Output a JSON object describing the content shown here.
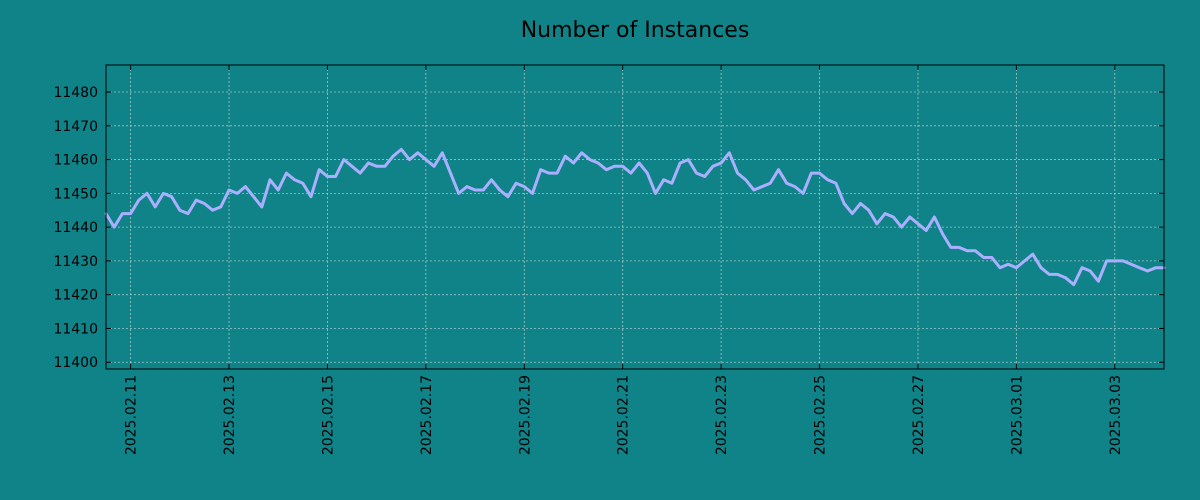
{
  "chart_data": {
    "type": "line",
    "title": "Number of Instances",
    "xlabel": "",
    "ylabel": "",
    "ylim": [
      11398,
      11488
    ],
    "xlim": [
      "2025-02-10T12:00",
      "2025-03-04T00:00"
    ],
    "grid": true,
    "yticks": [
      11400,
      11410,
      11420,
      11430,
      11440,
      11450,
      11460,
      11470,
      11480
    ],
    "xticks": [
      "2025.02.11",
      "2025.02.13",
      "2025.02.15",
      "2025.02.17",
      "2025.02.19",
      "2025.02.21",
      "2025.02.23",
      "2025.02.25",
      "2025.02.27",
      "2025.03.01",
      "2025.03.03"
    ],
    "series": [
      {
        "color": "#aab0ff",
        "x": [
          "2025-02-10T12:00",
          "2025-02-10T16:00",
          "2025-02-10T20:00",
          "2025-02-11T00:00",
          "2025-02-11T04:00",
          "2025-02-11T08:00",
          "2025-02-11T12:00",
          "2025-02-11T16:00",
          "2025-02-11T20:00",
          "2025-02-12T00:00",
          "2025-02-12T04:00",
          "2025-02-12T08:00",
          "2025-02-12T12:00",
          "2025-02-12T16:00",
          "2025-02-12T20:00",
          "2025-02-13T00:00",
          "2025-02-13T04:00",
          "2025-02-13T08:00",
          "2025-02-13T12:00",
          "2025-02-13T16:00",
          "2025-02-13T20:00",
          "2025-02-14T00:00",
          "2025-02-14T04:00",
          "2025-02-14T08:00",
          "2025-02-14T12:00",
          "2025-02-14T16:00",
          "2025-02-14T20:00",
          "2025-02-15T00:00",
          "2025-02-15T04:00",
          "2025-02-15T08:00",
          "2025-02-15T12:00",
          "2025-02-15T16:00",
          "2025-02-15T20:00",
          "2025-02-16T00:00",
          "2025-02-16T04:00",
          "2025-02-16T08:00",
          "2025-02-16T12:00",
          "2025-02-16T16:00",
          "2025-02-16T20:00",
          "2025-02-17T00:00",
          "2025-02-17T04:00",
          "2025-02-17T08:00",
          "2025-02-17T12:00",
          "2025-02-17T16:00",
          "2025-02-17T20:00",
          "2025-02-18T00:00",
          "2025-02-18T04:00",
          "2025-02-18T08:00",
          "2025-02-18T12:00",
          "2025-02-18T16:00",
          "2025-02-18T20:00",
          "2025-02-19T00:00",
          "2025-02-19T04:00",
          "2025-02-19T08:00",
          "2025-02-19T12:00",
          "2025-02-19T16:00",
          "2025-02-19T20:00",
          "2025-02-20T00:00",
          "2025-02-20T04:00",
          "2025-02-20T08:00",
          "2025-02-20T12:00",
          "2025-02-20T16:00",
          "2025-02-20T20:00",
          "2025-02-21T00:00",
          "2025-02-21T04:00",
          "2025-02-21T08:00",
          "2025-02-21T12:00",
          "2025-02-21T16:00",
          "2025-02-21T20:00",
          "2025-02-22T00:00",
          "2025-02-22T04:00",
          "2025-02-22T08:00",
          "2025-02-22T12:00",
          "2025-02-22T16:00",
          "2025-02-22T20:00",
          "2025-02-23T00:00",
          "2025-02-23T04:00",
          "2025-02-23T08:00",
          "2025-02-23T12:00",
          "2025-02-23T16:00",
          "2025-02-23T20:00",
          "2025-02-24T00:00",
          "2025-02-24T04:00",
          "2025-02-24T08:00",
          "2025-02-24T12:00",
          "2025-02-24T16:00",
          "2025-02-24T20:00",
          "2025-02-25T00:00",
          "2025-02-25T04:00",
          "2025-02-25T08:00",
          "2025-02-25T12:00",
          "2025-02-25T16:00",
          "2025-02-25T20:00",
          "2025-02-26T00:00",
          "2025-02-26T04:00",
          "2025-02-26T08:00",
          "2025-02-26T12:00",
          "2025-02-26T16:00",
          "2025-02-26T20:00",
          "2025-02-27T00:00",
          "2025-02-27T04:00",
          "2025-02-27T08:00",
          "2025-02-27T12:00",
          "2025-02-27T16:00",
          "2025-02-27T20:00",
          "2025-02-28T00:00",
          "2025-02-28T04:00",
          "2025-02-28T08:00",
          "2025-02-28T12:00",
          "2025-02-28T16:00",
          "2025-02-28T20:00",
          "2025-03-01T00:00",
          "2025-03-01T04:00",
          "2025-03-01T08:00",
          "2025-03-01T12:00",
          "2025-03-01T16:00",
          "2025-03-01T20:00",
          "2025-03-02T00:00",
          "2025-03-02T04:00",
          "2025-03-02T08:00",
          "2025-03-02T12:00",
          "2025-03-02T16:00",
          "2025-03-02T20:00",
          "2025-03-03T00:00",
          "2025-03-03T04:00",
          "2025-03-03T08:00",
          "2025-03-03T12:00",
          "2025-03-03T16:00",
          "2025-03-03T20:00",
          "2025-03-04T00:00"
        ],
        "values": [
          11444,
          11440,
          11444,
          11444,
          11448,
          11450,
          11446,
          11450,
          11449,
          11445,
          11444,
          11448,
          11447,
          11445,
          11446,
          11451,
          11450,
          11452,
          11449,
          11446,
          11454,
          11451,
          11456,
          11454,
          11453,
          11449,
          11457,
          11455,
          11455,
          11460,
          11458,
          11456,
          11459,
          11458,
          11458,
          11461,
          11463,
          11460,
          11462,
          11460,
          11458,
          11462,
          11456,
          11450,
          11452,
          11451,
          11451,
          11454,
          11451,
          11449,
          11453,
          11452,
          11450,
          11457,
          11456,
          11456,
          11461,
          11459,
          11462,
          11460,
          11459,
          11457,
          11458,
          11458,
          11456,
          11459,
          11456,
          11450,
          11454,
          11453,
          11459,
          11460,
          11456,
          11455,
          11458,
          11459,
          11462,
          11456,
          11454,
          11451,
          11452,
          11453,
          11457,
          11453,
          11452,
          11450,
          11456,
          11456,
          11454,
          11453,
          11447,
          11444,
          11447,
          11445,
          11441,
          11444,
          11443,
          11440,
          11443,
          11441,
          11439,
          11443,
          11438,
          11434,
          11434,
          11433,
          11433,
          11431,
          11431,
          11428,
          11429,
          11428,
          11430,
          11432,
          11428,
          11426,
          11426,
          11425,
          11423,
          11428,
          11427,
          11424,
          11430,
          11430,
          11430,
          11429,
          11428,
          11427,
          11428,
          11428
        ]
      }
    ]
  }
}
